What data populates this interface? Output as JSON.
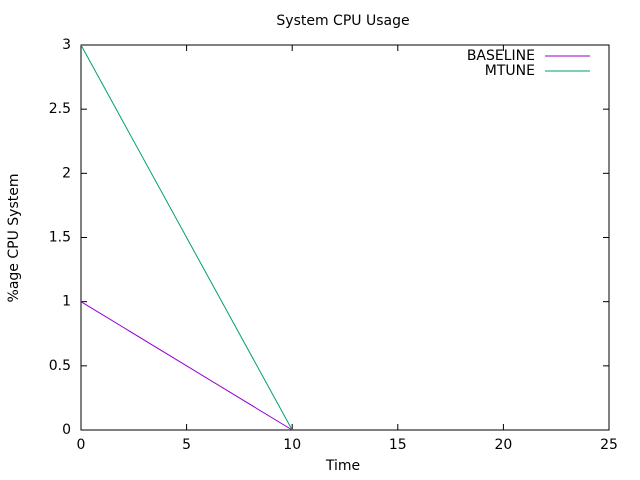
{
  "chart_data": {
    "type": "line",
    "title": "System CPU Usage",
    "x_label": "Time",
    "y_label": "%age CPU System",
    "x": [
      0,
      10
    ],
    "series": [
      {
        "name": "BASELINE",
        "color": "#9400d3",
        "values": [
          1,
          0
        ]
      },
      {
        "name": "MTUNE",
        "color": "#009e73",
        "values": [
          3,
          0
        ]
      }
    ],
    "xlim": [
      0,
      25
    ],
    "xticks": [
      0,
      5,
      10,
      15,
      20,
      25
    ],
    "ylim": [
      0,
      3
    ],
    "yticks": [
      0,
      0.5,
      1,
      1.5,
      2,
      2.5,
      3
    ],
    "grid": false,
    "legend": "top-right"
  }
}
